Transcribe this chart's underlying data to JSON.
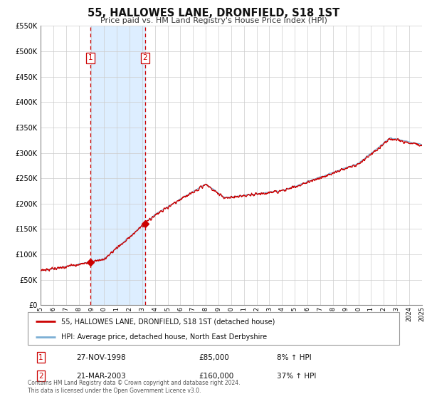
{
  "title": "55, HALLOWES LANE, DRONFIELD, S18 1ST",
  "subtitle": "Price paid vs. HM Land Registry's House Price Index (HPI)",
  "sale1_date": "27-NOV-1998",
  "sale1_price": 85000,
  "sale1_hpi_change": "8% ↑ HPI",
  "sale1_year": 1998.91,
  "sale2_date": "21-MAR-2003",
  "sale2_price": 160000,
  "sale2_hpi_change": "37% ↑ HPI",
  "sale2_year": 2003.22,
  "red_line_color": "#cc0000",
  "blue_line_color": "#7bafd4",
  "shade_color": "#ddeeff",
  "vline_color": "#cc0000",
  "grid_color": "#cccccc",
  "bg_color": "#ffffff",
  "legend_line1": "55, HALLOWES LANE, DRONFIELD, S18 1ST (detached house)",
  "legend_line2": "HPI: Average price, detached house, North East Derbyshire",
  "footnote": "Contains HM Land Registry data © Crown copyright and database right 2024.\nThis data is licensed under the Open Government Licence v3.0.",
  "xmin": 1995,
  "xmax": 2025,
  "ymin": 0,
  "ymax": 550000,
  "yticks": [
    0,
    50000,
    100000,
    150000,
    200000,
    250000,
    300000,
    350000,
    400000,
    450000,
    500000,
    550000
  ]
}
